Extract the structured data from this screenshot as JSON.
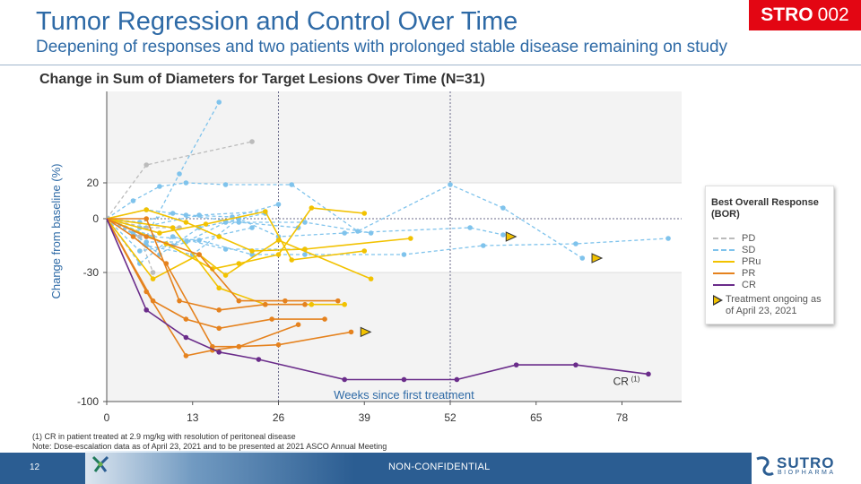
{
  "header": {
    "title": "Tumor Regression and Control Over Time",
    "subtitle": "Deepening of responses and two patients with prolonged stable disease remaining on study",
    "badge_bold": "STRO",
    "badge_num": "002"
  },
  "chart_data": {
    "type": "line",
    "title": "Change in Sum of Diameters for Target Lesions Over Time (N=31)",
    "xlabel": "Weeks since first treatment",
    "ylabel": "Change from baseline (%)",
    "xlim": [
      0,
      85
    ],
    "ylim": [
      -100,
      70
    ],
    "x_ticks": [
      0,
      13,
      26,
      39,
      52,
      65,
      78
    ],
    "x_tick_labels": [
      "0",
      "13",
      "26",
      "39",
      "52",
      "65",
      "78"
    ],
    "y_ticks": [
      20,
      0,
      -30,
      -100
    ],
    "y_tick_labels": [
      "20",
      "0",
      "-30",
      "-100"
    ],
    "reference_lines": {
      "horizontal": [
        0
      ],
      "vertical": [
        26,
        52
      ]
    },
    "bands": [
      [
        -30,
        20
      ]
    ],
    "colors": {
      "PD": "#bbbbbb",
      "SD": "#7fc3ec",
      "PRu": "#f2c200",
      "PR": "#e5821e",
      "CR": "#6a2c8a"
    },
    "series": [
      {
        "bor": "PD",
        "points": [
          [
            0,
            0
          ],
          [
            6,
            30
          ],
          [
            22,
            43
          ]
        ]
      },
      {
        "bor": "PD",
        "points": [
          [
            0,
            0
          ],
          [
            5,
            -10
          ],
          [
            7,
            -30
          ]
        ]
      },
      {
        "bor": "PD",
        "points": [
          [
            0,
            0
          ],
          [
            6,
            -5
          ],
          [
            11,
            -5
          ]
        ]
      },
      {
        "bor": "SD",
        "points": [
          [
            0,
            0
          ],
          [
            6,
            -10
          ],
          [
            11,
            25
          ],
          [
            17,
            65
          ]
        ]
      },
      {
        "bor": "SD",
        "points": [
          [
            0,
            0
          ],
          [
            4,
            10
          ],
          [
            8,
            18
          ],
          [
            12,
            20
          ],
          [
            18,
            19
          ],
          [
            28,
            19
          ],
          [
            38,
            -7
          ],
          [
            52,
            19
          ],
          [
            60,
            6
          ],
          [
            72,
            -22
          ]
        ]
      },
      {
        "bor": "SD",
        "points": [
          [
            0,
            0
          ],
          [
            6,
            5
          ],
          [
            12,
            2
          ],
          [
            19,
            1
          ],
          [
            26,
            8
          ]
        ]
      },
      {
        "bor": "SD",
        "points": [
          [
            0,
            0
          ],
          [
            7,
            -10
          ],
          [
            14,
            -12
          ],
          [
            22,
            -20
          ],
          [
            30,
            -20
          ],
          [
            45,
            -20
          ],
          [
            57,
            -15
          ],
          [
            71,
            -14
          ],
          [
            85,
            -11
          ]
        ]
      },
      {
        "bor": "SD",
        "points": [
          [
            0,
            0
          ],
          [
            6,
            -15
          ],
          [
            13,
            -20
          ],
          [
            20,
            0
          ],
          [
            26,
            -10
          ],
          [
            36,
            -8
          ],
          [
            55,
            -5
          ],
          [
            60,
            -9
          ]
        ]
      },
      {
        "bor": "SD",
        "points": [
          [
            0,
            0
          ],
          [
            5,
            -25
          ],
          [
            10,
            -10
          ],
          [
            18,
            -17
          ],
          [
            30,
            -17
          ]
        ]
      },
      {
        "bor": "SD",
        "points": [
          [
            0,
            0
          ],
          [
            5,
            -2
          ],
          [
            10,
            3
          ],
          [
            20,
            -2
          ],
          [
            29,
            -5
          ]
        ]
      },
      {
        "bor": "SD",
        "points": [
          [
            0,
            0
          ],
          [
            4,
            -8
          ],
          [
            8,
            -20
          ],
          [
            14,
            -5
          ],
          [
            24,
            3
          ]
        ]
      },
      {
        "bor": "SD",
        "points": [
          [
            0,
            0
          ],
          [
            6,
            -13
          ],
          [
            12,
            -13
          ],
          [
            18,
            -2
          ],
          [
            30,
            -2
          ],
          [
            40,
            -8
          ]
        ]
      },
      {
        "bor": "SD",
        "points": [
          [
            0,
            0
          ],
          [
            5,
            -18
          ],
          [
            10,
            -15
          ],
          [
            22,
            -5
          ]
        ]
      },
      {
        "bor": "SD",
        "points": [
          [
            0,
            0
          ],
          [
            5,
            -5
          ],
          [
            14,
            2
          ],
          [
            24,
            4
          ]
        ]
      },
      {
        "bor": "PRu",
        "points": [
          [
            0,
            0
          ],
          [
            7,
            -33
          ],
          [
            14,
            -20
          ],
          [
            18,
            -31
          ],
          [
            26,
            -12
          ],
          [
            40,
            -33
          ]
        ]
      },
      {
        "bor": "PRu",
        "points": [
          [
            0,
            0
          ],
          [
            6,
            5
          ],
          [
            12,
            -2
          ],
          [
            17,
            -10
          ],
          [
            22,
            -18
          ],
          [
            30,
            -17
          ],
          [
            46,
            -11
          ]
        ]
      },
      {
        "bor": "PRu",
        "points": [
          [
            0,
            0
          ],
          [
            8,
            -8
          ],
          [
            15,
            -3
          ],
          [
            24,
            4
          ],
          [
            28,
            -23
          ],
          [
            39,
            -18
          ]
        ]
      },
      {
        "bor": "PRu",
        "points": [
          [
            0,
            0
          ],
          [
            10,
            -5
          ],
          [
            17,
            -38
          ],
          [
            24,
            -47
          ],
          [
            31,
            -47
          ],
          [
            36,
            -47
          ]
        ]
      },
      {
        "bor": "PRu",
        "points": [
          [
            0,
            0
          ],
          [
            9,
            -14
          ],
          [
            16,
            -28
          ],
          [
            20,
            -25
          ],
          [
            26,
            -20
          ],
          [
            31,
            6
          ],
          [
            39,
            3
          ]
        ]
      },
      {
        "bor": "PR",
        "points": [
          [
            0,
            0
          ],
          [
            6,
            -40
          ],
          [
            12,
            -75
          ],
          [
            16,
            -72
          ],
          [
            20,
            -70
          ],
          [
            26,
            -69
          ],
          [
            37,
            -62
          ]
        ]
      },
      {
        "bor": "PR",
        "points": [
          [
            0,
            0
          ],
          [
            7,
            -45
          ],
          [
            12,
            -55
          ],
          [
            17,
            -60
          ],
          [
            25,
            -55
          ],
          [
            33,
            -55
          ]
        ]
      },
      {
        "bor": "PR",
        "points": [
          [
            0,
            0
          ],
          [
            6,
            0
          ],
          [
            11,
            -45
          ],
          [
            17,
            -50
          ],
          [
            24,
            -47
          ],
          [
            30,
            -47
          ]
        ]
      },
      {
        "bor": "PR",
        "points": [
          [
            0,
            0
          ],
          [
            4,
            -10
          ],
          [
            9,
            -25
          ],
          [
            16,
            -70
          ],
          [
            20,
            -70
          ],
          [
            29,
            -58
          ]
        ]
      },
      {
        "bor": "PR",
        "points": [
          [
            0,
            0
          ],
          [
            6,
            -10
          ],
          [
            14,
            -20
          ],
          [
            20,
            -45
          ],
          [
            27,
            -45
          ],
          [
            35,
            -45
          ]
        ]
      },
      {
        "bor": "CR",
        "points": [
          [
            0,
            0
          ],
          [
            6,
            -50
          ],
          [
            12,
            -65
          ],
          [
            17,
            -73
          ],
          [
            23,
            -77
          ],
          [
            36,
            -88
          ],
          [
            45,
            -88
          ],
          [
            53,
            -88
          ],
          [
            62,
            -80
          ],
          [
            71,
            -80
          ],
          [
            82,
            -85
          ]
        ]
      }
    ],
    "ongoing_markers": [
      [
        39,
        -62
      ],
      [
        61,
        -10
      ],
      [
        74,
        -22
      ]
    ],
    "annotations": [
      {
        "text": "CR",
        "sup": "(1)",
        "x": 81,
        "y": -89
      },
      {
        "text": "Weeks since first treatment",
        "x": 45,
        "y": -96
      }
    ],
    "legend": {
      "title": "Best Overall Response (BOR)",
      "items": [
        {
          "label": "PD",
          "key": "PD",
          "dashed": true
        },
        {
          "label": "SD",
          "key": "SD",
          "dashed": true
        },
        {
          "label": "PRu",
          "key": "PRu",
          "dashed": false
        },
        {
          "label": "PR",
          "key": "PR",
          "dashed": false
        },
        {
          "label": "CR",
          "key": "CR",
          "dashed": false
        }
      ],
      "ongoing_label": "Treatment ongoing as of April 23, 2021"
    }
  },
  "footnotes": {
    "line1": "(1) CR in patient treated at 2.9 mg/kg with resolution of peritoneal disease",
    "line2": "Note: Dose-escalation data as of April 23, 2021 and to be presented at 2021 ASCO Annual Meeting"
  },
  "footer": {
    "page_number": "12",
    "confidentiality": "NON-CONFIDENTIAL",
    "logo_name": "SUTRO",
    "logo_sub": "BIOPHARMA"
  }
}
